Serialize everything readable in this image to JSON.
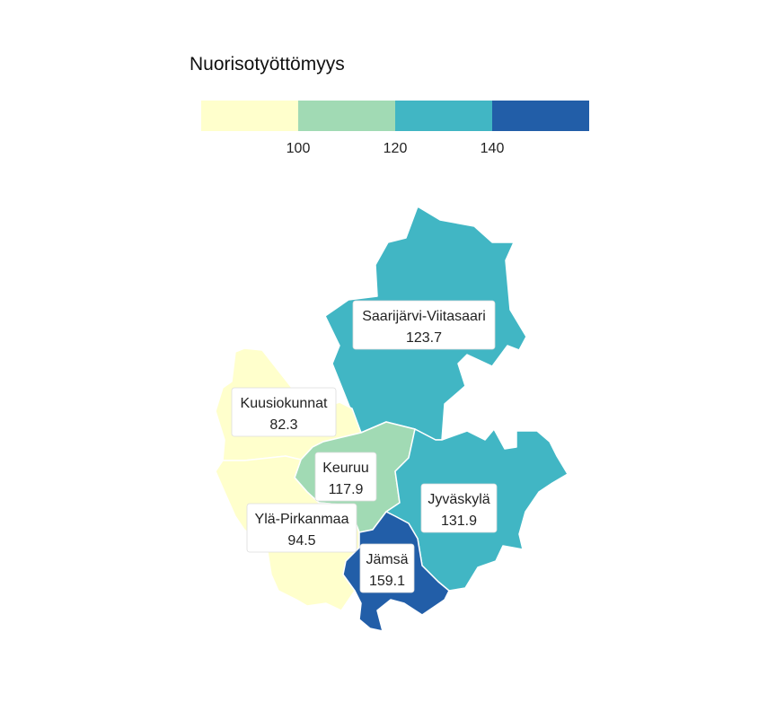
{
  "legend": {
    "title": "Nuorisotyöttömyys",
    "breaks": [
      "100",
      "120",
      "140"
    ],
    "bin_colors": [
      "#ffffcc",
      "#a1dab4",
      "#41b6c4",
      "#225ea8"
    ]
  },
  "regions": [
    {
      "key": "saarijarvi",
      "name": "Saarijärvi-Viitasaari",
      "value": "123.7",
      "color": "#41b6c4"
    },
    {
      "key": "kuusiokunnat",
      "name": "Kuusiokunnat",
      "value": "82.3",
      "color": "#ffffcc"
    },
    {
      "key": "keuruu",
      "name": "Keuruu",
      "value": "117.9",
      "color": "#a1dab4"
    },
    {
      "key": "jyvaskyla",
      "name": "Jyväskylä",
      "value": "131.9",
      "color": "#41b6c4"
    },
    {
      "key": "yla-pirkanmaa",
      "name": "Ylä-Pirkanmaa",
      "value": "94.5",
      "color": "#ffffcc"
    },
    {
      "key": "jamsa",
      "name": "Jämsä",
      "value": "159.1",
      "color": "#225ea8"
    }
  ]
}
